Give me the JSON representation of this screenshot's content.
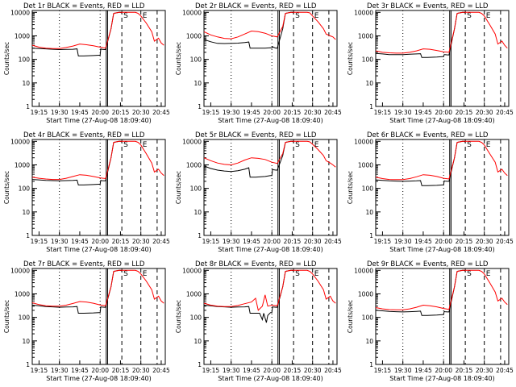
{
  "shared": {
    "xlabel": "Start Time (27-Aug-08 18:09:40)",
    "ylabel": "Counts/sec",
    "x_ticks": [
      "19:15",
      "19:30",
      "19:45",
      "20:00",
      "20:15",
      "20:30",
      "20:45"
    ],
    "x_tick_minutes": [
      75,
      90,
      105,
      120,
      135,
      150,
      165
    ],
    "xlim_minutes": [
      70,
      168
    ],
    "y_scale": "log",
    "y_ticks": [
      "1",
      "10",
      "100",
      "1000",
      "10000"
    ],
    "ylim": [
      1,
      12000
    ],
    "colors": {
      "events": "#000000",
      "lld": "#ff0000"
    },
    "dotted_verticals_minutes": [
      90,
      120
    ],
    "dashed_verticals_minutes": [
      136,
      150,
      162
    ],
    "solid_verticals_minutes": [
      124.5,
      125.5
    ],
    "marker_labels": [
      {
        "text": "S",
        "minute": 136
      },
      {
        "text": "E",
        "minute": 150
      }
    ]
  },
  "chart_data": [
    {
      "type": "line",
      "title": "Det 1r  BLACK = Events, RED = LLD",
      "series": [
        {
          "name": "Events",
          "x": [
            70,
            75,
            80,
            85,
            90,
            95,
            100,
            103,
            104,
            108,
            115,
            119,
            120,
            120.5,
            121,
            123,
            124,
            128,
            130,
            134,
            135,
            136
          ],
          "y": [
            300,
            290,
            280,
            270,
            260,
            265,
            270,
            280,
            140,
            140,
            145,
            150,
            150,
            280,
            270,
            260,
            260,
            2000,
            9000,
            10000,
            10000,
            9500
          ]
        },
        {
          "name": "LLD",
          "x": [
            70,
            75,
            80,
            85,
            90,
            95,
            100,
            105,
            110,
            115,
            120,
            124,
            128,
            130,
            134,
            136,
            146,
            148,
            150,
            154,
            158,
            160,
            163,
            165,
            167
          ],
          "y": [
            400,
            330,
            300,
            290,
            290,
            320,
            370,
            450,
            420,
            380,
            330,
            300,
            2000,
            9000,
            10000,
            10000,
            10000,
            9000,
            7000,
            3500,
            1500,
            600,
            800,
            500,
            400
          ]
        }
      ]
    },
    {
      "type": "line",
      "title": "Det 2r  BLACK = Events, RED = LLD",
      "series": [
        {
          "name": "Events",
          "x": [
            70,
            75,
            80,
            85,
            90,
            95,
            100,
            103,
            104,
            108,
            115,
            119,
            120,
            120.5,
            121,
            123,
            124,
            128,
            130,
            134,
            135,
            136
          ],
          "y": [
            700,
            560,
            480,
            470,
            480,
            490,
            520,
            550,
            300,
            300,
            300,
            310,
            300,
            350,
            330,
            300,
            300,
            2000,
            9000,
            10000,
            10000,
            9500
          ]
        },
        {
          "name": "LLD",
          "x": [
            70,
            75,
            80,
            85,
            90,
            95,
            100,
            105,
            110,
            115,
            120,
            124,
            128,
            130,
            134,
            136,
            146,
            148,
            150,
            154,
            158,
            160,
            163,
            165,
            167
          ],
          "y": [
            1500,
            1100,
            900,
            780,
            750,
            900,
            1200,
            1600,
            1500,
            1300,
            1000,
            900,
            2500,
            9000,
            10000,
            10000,
            10000,
            9500,
            7000,
            4000,
            2000,
            1200,
            1000,
            900,
            700
          ]
        }
      ]
    },
    {
      "type": "line",
      "title": "Det 3r  BLACK = Events, RED = LLD",
      "series": [
        {
          "name": "Events",
          "x": [
            70,
            75,
            80,
            85,
            90,
            95,
            100,
            103,
            104,
            108,
            115,
            119,
            120,
            120.5,
            121,
            123,
            124,
            128,
            130,
            134,
            135,
            136
          ],
          "y": [
            180,
            170,
            160,
            160,
            160,
            165,
            170,
            175,
            120,
            120,
            125,
            130,
            130,
            160,
            160,
            155,
            155,
            2000,
            9000,
            10000,
            10000,
            9500
          ]
        },
        {
          "name": "LLD",
          "x": [
            70,
            75,
            80,
            85,
            90,
            95,
            100,
            105,
            110,
            115,
            120,
            124,
            128,
            130,
            134,
            136,
            146,
            148,
            150,
            154,
            158,
            160,
            163,
            165,
            167
          ],
          "y": [
            230,
            200,
            190,
            185,
            185,
            200,
            230,
            280,
            270,
            240,
            210,
            200,
            2000,
            9000,
            10000,
            10000,
            10000,
            9000,
            7000,
            3000,
            1200,
            450,
            600,
            400,
            300
          ]
        }
      ]
    },
    {
      "type": "line",
      "title": "Det 4r  BLACK = Events, RED = LLD",
      "series": [
        {
          "name": "Events",
          "x": [
            70,
            75,
            80,
            85,
            90,
            95,
            100,
            103,
            104,
            108,
            115,
            119,
            120,
            120.5,
            121,
            123,
            124,
            128,
            130,
            134,
            135,
            136
          ],
          "y": [
            240,
            230,
            220,
            215,
            210,
            215,
            220,
            225,
            140,
            140,
            145,
            150,
            150,
            220,
            215,
            210,
            210,
            2000,
            9000,
            10000,
            10000,
            9500
          ]
        },
        {
          "name": "LLD",
          "x": [
            70,
            75,
            80,
            85,
            90,
            95,
            100,
            105,
            110,
            115,
            120,
            124,
            128,
            130,
            134,
            136,
            146,
            148,
            150,
            154,
            158,
            160,
            163,
            165,
            167
          ],
          "y": [
            300,
            270,
            250,
            240,
            240,
            270,
            320,
            380,
            360,
            320,
            280,
            260,
            2000,
            9000,
            10000,
            10000,
            10000,
            9000,
            7000,
            3000,
            1200,
            500,
            650,
            450,
            350
          ]
        }
      ]
    },
    {
      "type": "line",
      "title": "Det 5r  BLACK = Events, RED = LLD",
      "series": [
        {
          "name": "Events",
          "x": [
            70,
            75,
            80,
            85,
            90,
            95,
            100,
            103,
            104,
            108,
            115,
            119,
            120,
            120.5,
            121,
            123,
            124,
            128,
            130,
            134,
            135,
            136
          ],
          "y": [
            900,
            700,
            600,
            550,
            520,
            560,
            650,
            750,
            300,
            300,
            320,
            350,
            350,
            650,
            620,
            600,
            600,
            2500,
            9000,
            10000,
            10000,
            9500
          ]
        },
        {
          "name": "LLD",
          "x": [
            70,
            75,
            80,
            85,
            90,
            95,
            100,
            105,
            110,
            115,
            120,
            124,
            128,
            130,
            134,
            136,
            146,
            148,
            150,
            154,
            158,
            160,
            163,
            165,
            167
          ],
          "y": [
            2000,
            1500,
            1200,
            1050,
            1000,
            1200,
            1600,
            2000,
            1900,
            1700,
            1300,
            1150,
            3000,
            9000,
            10000,
            10000,
            10000,
            9500,
            7500,
            4500,
            2500,
            1500,
            1200,
            1000,
            800
          ]
        }
      ]
    },
    {
      "type": "line",
      "title": "Det 6r  BLACK = Events, RED = LLD",
      "series": [
        {
          "name": "Events",
          "x": [
            70,
            75,
            80,
            85,
            90,
            95,
            100,
            103,
            104,
            108,
            115,
            119,
            120,
            120.5,
            121,
            123,
            124,
            128,
            130,
            134,
            135,
            136
          ],
          "y": [
            230,
            220,
            210,
            205,
            200,
            205,
            210,
            215,
            130,
            130,
            135,
            140,
            140,
            210,
            205,
            200,
            200,
            2000,
            9000,
            10000,
            10000,
            9500
          ]
        },
        {
          "name": "LLD",
          "x": [
            70,
            75,
            80,
            85,
            90,
            95,
            100,
            105,
            110,
            115,
            120,
            124,
            128,
            130,
            134,
            136,
            146,
            148,
            150,
            154,
            158,
            160,
            163,
            165,
            167
          ],
          "y": [
            300,
            260,
            240,
            235,
            235,
            260,
            310,
            380,
            360,
            320,
            270,
            250,
            2000,
            9000,
            10000,
            10000,
            10000,
            9000,
            7000,
            3000,
            1300,
            500,
            650,
            450,
            350
          ]
        }
      ]
    },
    {
      "type": "line",
      "title": "Det 7r  BLACK = Events, RED = LLD",
      "series": [
        {
          "name": "Events",
          "x": [
            70,
            75,
            80,
            85,
            90,
            95,
            100,
            103,
            104,
            108,
            115,
            119,
            120,
            120.5,
            121,
            123,
            124,
            128,
            130,
            134,
            135,
            136
          ],
          "y": [
            330,
            310,
            290,
            280,
            270,
            275,
            280,
            290,
            150,
            150,
            155,
            160,
            160,
            280,
            275,
            270,
            270,
            2000,
            9000,
            10000,
            10000,
            9500
          ]
        },
        {
          "name": "LLD",
          "x": [
            70,
            75,
            80,
            85,
            90,
            95,
            100,
            105,
            110,
            115,
            120,
            124,
            128,
            130,
            134,
            136,
            146,
            148,
            150,
            154,
            158,
            160,
            163,
            165,
            167
          ],
          "y": [
            420,
            350,
            310,
            300,
            300,
            330,
            390,
            470,
            450,
            400,
            340,
            310,
            2000,
            9000,
            10000,
            10000,
            10000,
            9000,
            7000,
            3500,
            1500,
            600,
            800,
            500,
            400
          ]
        }
      ]
    },
    {
      "type": "line",
      "title": "Det 8r  BLACK = Events, RED = LLD",
      "series": [
        {
          "name": "Events",
          "x": [
            70,
            75,
            80,
            85,
            90,
            95,
            100,
            103,
            104,
            108,
            111,
            113,
            114,
            116,
            117,
            119,
            120,
            120.5,
            121,
            123,
            124,
            128,
            130,
            134,
            135,
            136
          ],
          "y": [
            330,
            310,
            290,
            280,
            270,
            275,
            280,
            290,
            150,
            150,
            150,
            80,
            150,
            60,
            120,
            160,
            160,
            280,
            275,
            270,
            270,
            2000,
            9000,
            10000,
            10000,
            9500
          ]
        },
        {
          "name": "LLD",
          "x": [
            70,
            75,
            80,
            85,
            90,
            95,
            100,
            105,
            108,
            110,
            113,
            115,
            117,
            120,
            124,
            128,
            130,
            134,
            136,
            146,
            148,
            150,
            154,
            158,
            160,
            163,
            165,
            167
          ],
          "y": [
            400,
            330,
            300,
            290,
            290,
            320,
            380,
            450,
            650,
            200,
            300,
            900,
            300,
            330,
            310,
            2000,
            9000,
            10000,
            10000,
            10000,
            9000,
            7000,
            3500,
            1500,
            600,
            800,
            500,
            400
          ]
        }
      ]
    },
    {
      "type": "line",
      "title": "Det 9r  BLACK = Events, RED = LLD",
      "series": [
        {
          "name": "Events",
          "x": [
            70,
            75,
            80,
            85,
            90,
            95,
            100,
            103,
            104,
            108,
            115,
            119,
            120,
            120.5,
            121,
            123,
            124,
            128,
            130,
            134,
            135,
            136
          ],
          "y": [
            200,
            190,
            180,
            175,
            170,
            175,
            180,
            185,
            120,
            120,
            125,
            130,
            130,
            180,
            175,
            170,
            170,
            2000,
            9000,
            10000,
            10000,
            9500
          ]
        },
        {
          "name": "LLD",
          "x": [
            70,
            75,
            80,
            85,
            90,
            95,
            100,
            105,
            110,
            115,
            120,
            124,
            128,
            130,
            134,
            136,
            146,
            148,
            150,
            154,
            158,
            160,
            163,
            165,
            167
          ],
          "y": [
            260,
            230,
            215,
            210,
            210,
            230,
            270,
            330,
            310,
            280,
            240,
            220,
            2000,
            9000,
            10000,
            10000,
            10000,
            9000,
            7000,
            3000,
            1200,
            500,
            650,
            450,
            350
          ]
        }
      ]
    }
  ]
}
